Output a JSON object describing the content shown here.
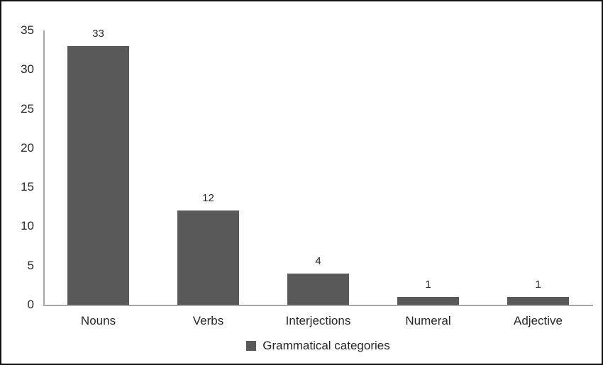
{
  "chart_data": {
    "type": "bar",
    "categories": [
      "Nouns",
      "Verbs",
      "Interjections",
      "Numeral",
      "Adjective"
    ],
    "values": [
      33,
      12,
      4,
      1,
      1
    ],
    "series_name": "Grammatical categories",
    "title": "",
    "xlabel": "",
    "ylabel": "",
    "ylim": [
      0,
      35
    ],
    "yticks": [
      0,
      5,
      10,
      15,
      20,
      25,
      30,
      35
    ],
    "grid": false,
    "legend_position": "bottom-center",
    "bar_color": "#595959",
    "axis_color": "#a6a6a6",
    "text_color": "#262626",
    "background_color": "#ffffff",
    "frame_border_color": "#121212"
  }
}
